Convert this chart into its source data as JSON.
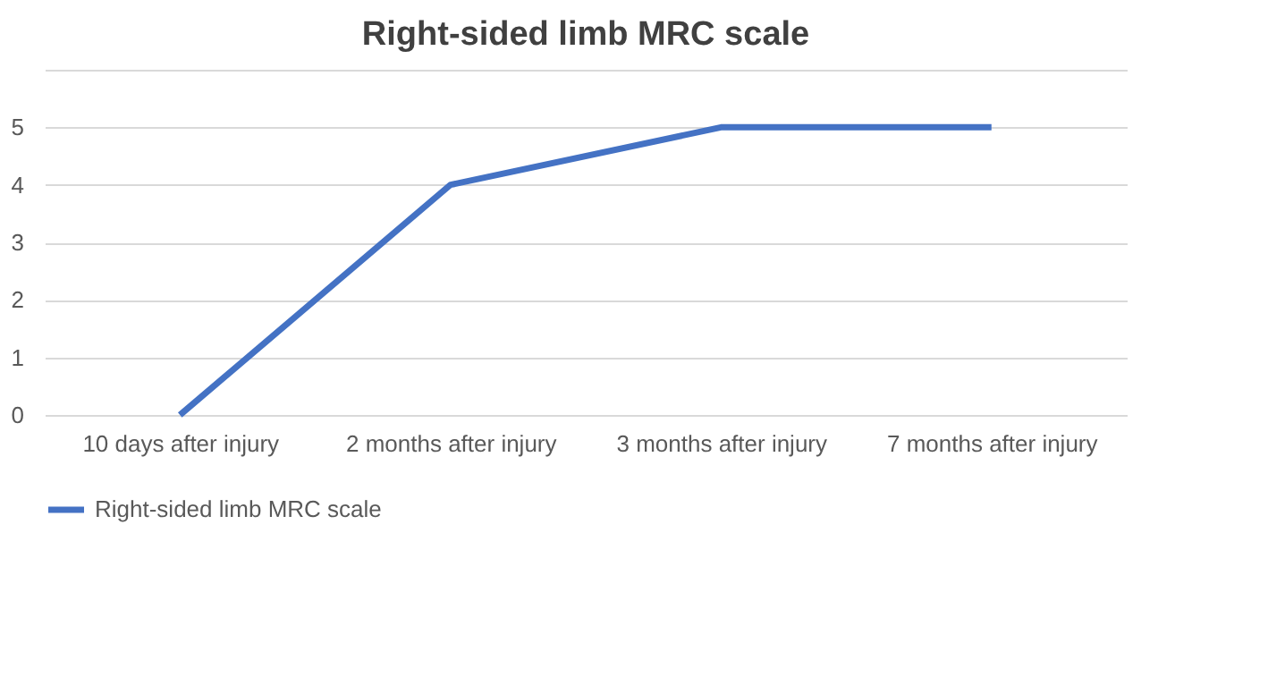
{
  "chart_data": {
    "type": "line",
    "title": "Right-sided limb MRC scale",
    "categories": [
      "10 days after injury",
      "2 months after injury",
      "3 months after injury",
      "7 months after injury"
    ],
    "series": [
      {
        "name": "Right-sided limb MRC scale",
        "color": "#4472c4",
        "values": [
          0,
          4,
          5,
          5
        ]
      }
    ],
    "ylim": [
      0,
      6
    ],
    "yticks": [
      0,
      1,
      2,
      3,
      4,
      5,
      {
        "value": 6,
        "label": null
      }
    ],
    "grid": "y",
    "legend": "bottom",
    "marker": "none",
    "line_style": "solid"
  }
}
